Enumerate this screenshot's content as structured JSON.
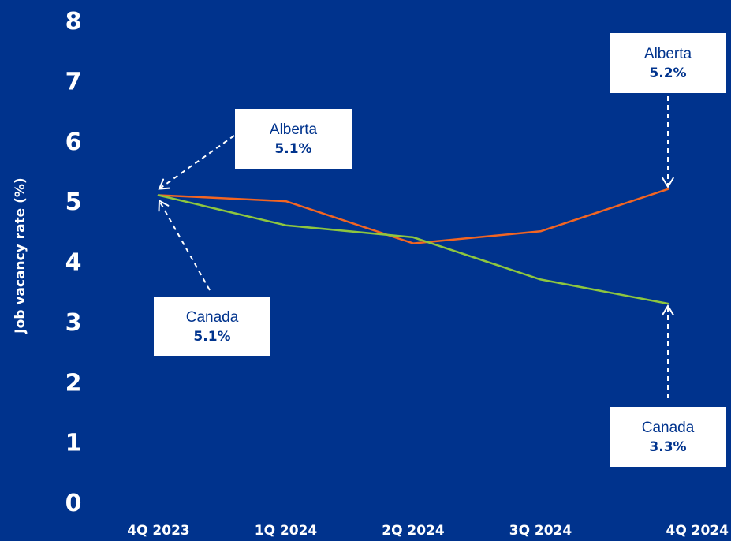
{
  "chart_data": {
    "type": "line",
    "title": "",
    "xlabel": "",
    "ylabel": "Job vacancy rate (%)",
    "ylim": [
      0,
      8
    ],
    "yticks": [
      "0",
      "1",
      "2",
      "3",
      "4",
      "5",
      "6",
      "7",
      "8"
    ],
    "categories": [
      "4Q 2023",
      "1Q 2024",
      "2Q 2024",
      "3Q 2024",
      "4Q 2024"
    ],
    "grid": false,
    "series": [
      {
        "name": "Alberta",
        "color": "#f26522",
        "values": [
          5.1,
          5.0,
          4.3,
          4.5,
          5.2
        ]
      },
      {
        "name": "Canada",
        "color": "#8dc63f",
        "values": [
          5.1,
          4.6,
          4.4,
          3.7,
          3.3
        ]
      }
    ],
    "annotations": [
      {
        "id": "alberta-start",
        "series": "Alberta",
        "category": "4Q 2023",
        "name": "Alberta",
        "value": "5.1%"
      },
      {
        "id": "canada-start",
        "series": "Canada",
        "category": "4Q 2023",
        "name": "Canada",
        "value": "5.1%"
      },
      {
        "id": "alberta-end",
        "series": "Alberta",
        "category": "4Q 2024",
        "name": "Alberta",
        "value": "5.2%"
      },
      {
        "id": "canada-end",
        "series": "Canada",
        "category": "4Q 2024",
        "name": "Canada",
        "value": "3.3%"
      }
    ],
    "background": "#00338d"
  }
}
